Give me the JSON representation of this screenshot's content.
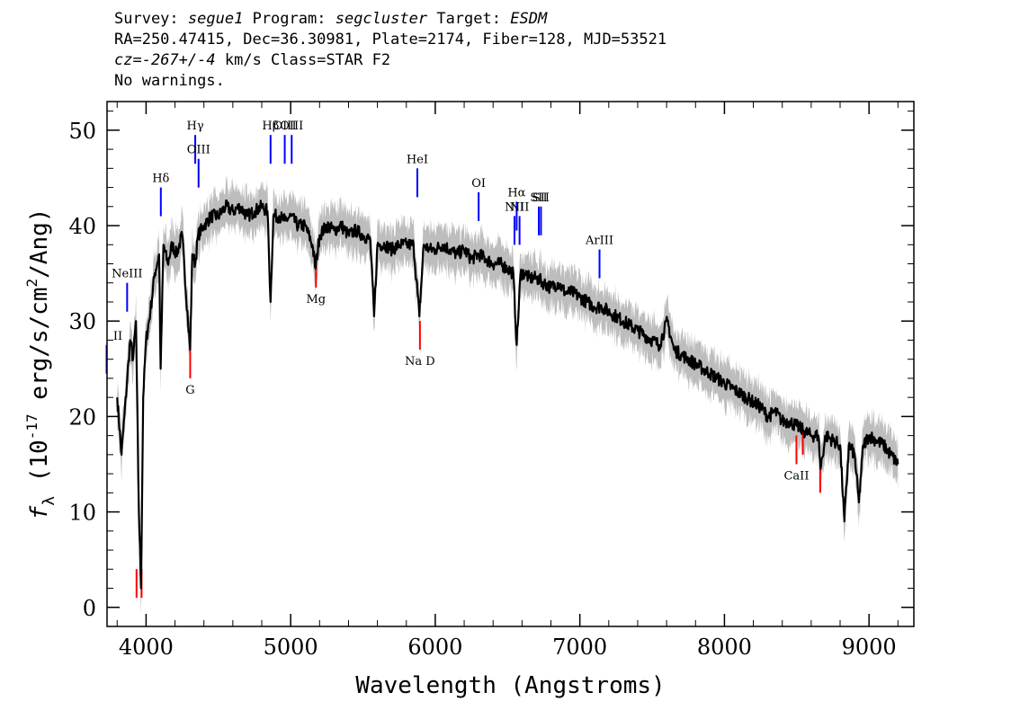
{
  "header": {
    "survey_label": "Survey:",
    "survey": "segue1",
    "program_label": "Program:",
    "program": "segcluster",
    "target_label": "Target:",
    "target": "ESDM",
    "line2": "RA=250.47415, Dec=36.30981, Plate=2174, Fiber=128, MJD=53521",
    "cz_label": "cz=",
    "cz_value": "-267+/-4",
    "cz_suffix": "km/s Class=STAR F2",
    "warnings": "No warnings."
  },
  "colors": {
    "flux": "#000000",
    "error_band": "#bdbdbd",
    "emission": "#0000ff",
    "absorption": "#ff0000"
  },
  "chart_data": {
    "type": "line",
    "xlabel": "Wavelength (Angstroms)",
    "ylabel": "f_λ (10^-17 erg/s/cm^2/Ang)",
    "xlim": [
      3730,
      9310
    ],
    "ylim": [
      -2,
      53
    ],
    "xticks": [
      4000,
      5000,
      6000,
      7000,
      8000,
      9000
    ],
    "yticks": [
      0,
      10,
      20,
      30,
      40,
      50
    ],
    "grid": false,
    "series": [
      {
        "x": [
          3800,
          3830,
          3850,
          3870,
          3890,
          3910,
          3930,
          3950,
          3965,
          3980,
          4000,
          4030,
          4060,
          4090,
          4101,
          4120,
          4150,
          4180,
          4210,
          4250,
          4290,
          4305,
          4320,
          4340,
          4360,
          4400,
          4450,
          4500,
          4550,
          4600,
          4650,
          4700,
          4750,
          4800,
          4840,
          4861,
          4880,
          4920,
          4960,
          5000,
          5050,
          5100,
          5150,
          5172,
          5200,
          5250,
          5300,
          5350,
          5400,
          5450,
          5500,
          5550,
          5577,
          5600,
          5650,
          5700,
          5750,
          5800,
          5850,
          5890,
          5920,
          5960,
          6000,
          6050,
          6100,
          6150,
          6200,
          6250,
          6300,
          6350,
          6400,
          6450,
          6500,
          6540,
          6563,
          6590,
          6620,
          6650,
          6700,
          6750,
          6800,
          6850,
          6900,
          6950,
          7000,
          7050,
          7100,
          7150,
          7200,
          7250,
          7300,
          7350,
          7400,
          7450,
          7500,
          7550,
          7605,
          7650,
          7700,
          7750,
          7800,
          7850,
          7900,
          7950,
          8000,
          8050,
          8100,
          8150,
          8200,
          8250,
          8300,
          8350,
          8400,
          8450,
          8500,
          8550,
          8600,
          8650,
          8664,
          8700,
          8750,
          8800,
          8830,
          8860,
          8900,
          8930,
          8960,
          9000,
          9050,
          9100,
          9150,
          9200
        ],
        "y": [
          22,
          16,
          20,
          24,
          28,
          26,
          30,
          10,
          2,
          22,
          28,
          31,
          35,
          37,
          25,
          38,
          36,
          38,
          37,
          39,
          30,
          27,
          37,
          36,
          39,
          40,
          41,
          41,
          42,
          41.5,
          42,
          41,
          41.5,
          42,
          41.5,
          32,
          41,
          41,
          40.5,
          41,
          40,
          40,
          38,
          35.5,
          39,
          40,
          39.5,
          40,
          39,
          39.5,
          39,
          38.5,
          30.5,
          38,
          38,
          37.5,
          38,
          38,
          38,
          30.5,
          38,
          37.5,
          37.5,
          38,
          37.5,
          37,
          37.5,
          36.5,
          37,
          36.5,
          36,
          36,
          35.5,
          35,
          27.5,
          35,
          35,
          34.5,
          34.5,
          34,
          33.5,
          34,
          33,
          33,
          32.5,
          32,
          31.5,
          31.5,
          31,
          30.5,
          30,
          29.5,
          29,
          28.5,
          28,
          27.5,
          30,
          27,
          26.5,
          26,
          25.5,
          25,
          24.5,
          24,
          23.5,
          23,
          22.5,
          22,
          21.5,
          21,
          20,
          20.5,
          19.5,
          19.5,
          19,
          18.5,
          18,
          18,
          14.5,
          18,
          17.5,
          17,
          9,
          17,
          16,
          11,
          17,
          18,
          17.5,
          17,
          16,
          15
        ]
      }
    ],
    "lines": [
      {
        "label": "NeIII",
        "x": 3869,
        "kind": "emission",
        "y": 34
      },
      {
        "label": "II",
        "x": 3727,
        "kind": "emission",
        "y": 27.5
      },
      {
        "label": "Hδ",
        "x": 4102,
        "kind": "emission",
        "y": 44
      },
      {
        "label": "Hγ",
        "x": 4340,
        "kind": "emission",
        "y": 49.5
      },
      {
        "label": "OIII",
        "x": 4363,
        "kind": "emission",
        "y": 47
      },
      {
        "label": "Hβ",
        "x": 4861,
        "kind": "emission",
        "y": 49.5
      },
      {
        "label": "OIII",
        "x": 4959,
        "kind": "emission",
        "y": 49.5
      },
      {
        "label": "OIII",
        "x": 5007,
        "kind": "emission",
        "y": 49.5
      },
      {
        "label": "HeI",
        "x": 5876,
        "kind": "emission",
        "y": 46
      },
      {
        "label": "OI",
        "x": 6300,
        "kind": "emission",
        "y": 43.5
      },
      {
        "label": "NII",
        "x": 6548,
        "kind": "emission",
        "y": 41
      },
      {
        "label": "Hα",
        "x": 6563,
        "kind": "emission",
        "y": 42.5
      },
      {
        "label": "NII",
        "x": 6583,
        "kind": "emission",
        "y": 41
      },
      {
        "label": "SII",
        "x": 6716,
        "kind": "emission",
        "y": 42
      },
      {
        "label": "SII",
        "x": 6731,
        "kind": "emission",
        "y": 42
      },
      {
        "label": "ArIII",
        "x": 7136,
        "kind": "emission",
        "y": 37.5
      },
      {
        "label": "",
        "x": 3934,
        "kind": "absorption",
        "y": 1
      },
      {
        "label": "",
        "x": 3969,
        "kind": "absorption",
        "y": 1
      },
      {
        "label": "G",
        "x": 4305,
        "kind": "absorption",
        "y": 24
      },
      {
        "label": "Mg",
        "x": 5175,
        "kind": "absorption",
        "y": 33.5
      },
      {
        "label": "Na D",
        "x": 5894,
        "kind": "absorption",
        "y": 27
      },
      {
        "label": "CaII",
        "x": 8498,
        "kind": "absorption",
        "y": 15
      },
      {
        "label": "",
        "x": 8542,
        "kind": "absorption",
        "y": 16
      },
      {
        "label": "",
        "x": 8662,
        "kind": "absorption",
        "y": 12
      }
    ]
  }
}
